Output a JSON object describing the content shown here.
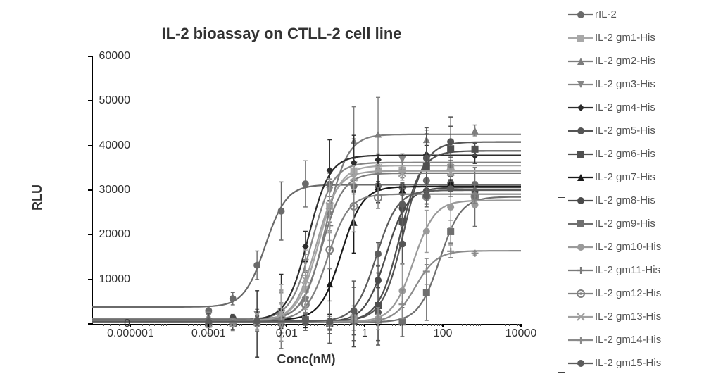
{
  "chart": {
    "title": "IL-2 bioassay on CTLL-2 cell line",
    "title_fontsize": 22,
    "ylabel": "RLU",
    "xlabel": "Conc(nM)",
    "label_fontsize": 18,
    "tick_fontsize": 16,
    "legend_fontsize": 15,
    "background_color": "#ffffff",
    "axis_color": "#000000",
    "xscale": "log",
    "xlim_log": [
      -7,
      4
    ],
    "ylim": [
      0,
      60000
    ],
    "ytick_step": 10000,
    "xticks_log": [
      -6,
      -4,
      -2,
      0,
      2,
      4
    ],
    "xtick_labels": [
      "0.000001",
      "0.0001",
      "0.01",
      "1",
      "100",
      "10000"
    ],
    "series": [
      {
        "name": "rIL-2",
        "marker": "circle",
        "color": "#6a6a6a",
        "ec50_log": -2.55,
        "bottom": 3800,
        "top": 31200
      },
      {
        "name": "IL-2 gm1-His",
        "marker": "square",
        "color": "#a8a8a8",
        "ec50_log": -1.18,
        "bottom": 900,
        "top": 35500
      },
      {
        "name": "IL-2 gm2-His",
        "marker": "triangle",
        "color": "#7d7d7d",
        "ec50_log": -1.0,
        "bottom": 1100,
        "top": 42500
      },
      {
        "name": "IL-2 gm3-His",
        "marker": "invtriangle",
        "color": "#858585",
        "ec50_log": -1.35,
        "bottom": 1000,
        "top": 36200
      },
      {
        "name": "IL-2 gm4-His",
        "marker": "diamond",
        "color": "#2c2c2c",
        "ec50_log": -1.45,
        "bottom": 800,
        "top": 37800
      },
      {
        "name": "IL-2 gm5-His",
        "marker": "circle",
        "color": "#555555",
        "ec50_log": 1.0,
        "bottom": 700,
        "top": 40800
      },
      {
        "name": "IL-2 gm6-His",
        "marker": "square",
        "color": "#4f4f4f",
        "ec50_log": 0.9,
        "bottom": 600,
        "top": 38800
      },
      {
        "name": "IL-2 gm7-His",
        "marker": "triangle",
        "color": "#1a1a1a",
        "ec50_log": -0.6,
        "bottom": 900,
        "top": 30800
      },
      {
        "name": "IL-2 gm8-His",
        "marker": "circle",
        "color": "#4a4a4a",
        "ec50_log": 0.55,
        "bottom": 500,
        "top": 30600
      },
      {
        "name": "IL-2 gm9-His",
        "marker": "square",
        "color": "#6f6f6f",
        "ec50_log": 1.92,
        "bottom": 400,
        "top": 28500
      },
      {
        "name": "IL-2 gm10-His",
        "marker": "circle",
        "color": "#9a9a9a",
        "ec50_log": 1.25,
        "bottom": 500,
        "top": 27700
      },
      {
        "name": "IL-2 gm11-His",
        "marker": "plus",
        "color": "#7a7a7a",
        "ec50_log": -1.1,
        "bottom": 900,
        "top": 33800
      },
      {
        "name": "IL-2 gm12-His",
        "marker": "odot",
        "color": "#808080",
        "ec50_log": -0.95,
        "bottom": 800,
        "top": 29100
      },
      {
        "name": "IL-2 gm13-His",
        "marker": "cross",
        "color": "#a0a0a0",
        "ec50_log": -1.25,
        "bottom": 700,
        "top": 34300
      },
      {
        "name": "IL-2 gm14-His",
        "marker": "plus",
        "color": "#8a8a8a",
        "ec50_log": 1.3,
        "bottom": 350,
        "top": 16400
      },
      {
        "name": "IL-2 gm15-His",
        "marker": "circle",
        "color": "#5c5c5c",
        "ec50_log": 0.3,
        "bottom": 550,
        "top": 30000
      }
    ],
    "line_width": 2.2,
    "marker_size": 5,
    "hill": 1.6
  }
}
